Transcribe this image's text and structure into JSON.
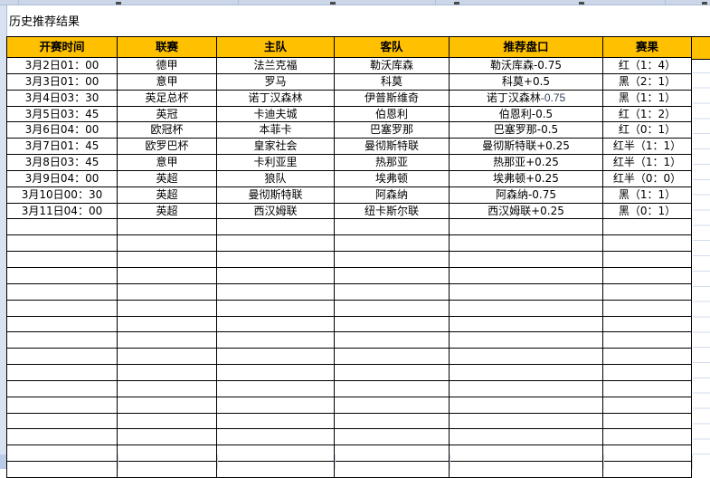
{
  "title": "历史推荐结果",
  "colors": {
    "header_bg": "#FFC000",
    "result_red": "#FF0000",
    "result_black": "#000000",
    "result_navy": "#1F3864",
    "gridline": "#D3DCEC"
  },
  "table": {
    "headers": [
      "开赛时间",
      "联赛",
      "主队",
      "客队",
      "推荐盘口",
      "赛果"
    ],
    "rows": [
      {
        "time": "3月2日01：00",
        "league": "德甲",
        "home": "法兰克福",
        "away": "勒沃库森",
        "handicap": "勒沃库森-0.75",
        "handicap_suffix": "",
        "result": "红（1：4）",
        "result_color": "red"
      },
      {
        "time": "3月3日01：00",
        "league": "意甲",
        "home": "罗马",
        "away": "科莫",
        "handicap": "科莫+0.5",
        "handicap_suffix": "",
        "result": "黑（2：1）",
        "result_color": "black"
      },
      {
        "time": "3月4日03：30",
        "league": "英足总杯",
        "home": "诺丁汉森林",
        "away": "伊普斯维奇",
        "handicap": "诺丁汉森林",
        "handicap_suffix": "-0.75",
        "result": "黑（1：1）",
        "result_color": "black"
      },
      {
        "time": "3月5日03：45",
        "league": "英冠",
        "home": "卡迪夫城",
        "away": "伯恩利",
        "handicap": "伯恩利-0.5",
        "handicap_suffix": "",
        "result": "红（1：2）",
        "result_color": "red"
      },
      {
        "time": "3月6日04：00",
        "league": "欧冠杯",
        "home": "本菲卡",
        "away": "巴塞罗那",
        "handicap": "巴塞罗那-0.5",
        "handicap_suffix": "",
        "result": "红（0：1）",
        "result_color": "red"
      },
      {
        "time": "3月7日01：45",
        "league": "欧罗巴杯",
        "home": "皇家社会",
        "away": "曼彻斯特联",
        "handicap": "曼彻斯特联+0.25",
        "handicap_suffix": "",
        "result": "红半（1：1）",
        "result_color": "red"
      },
      {
        "time": "3月8日03：45",
        "league": "意甲",
        "home": "卡利亚里",
        "away": "热那亚",
        "handicap": "热那亚+0.25",
        "handicap_suffix": "",
        "result": "红半（1：1）",
        "result_color": "red"
      },
      {
        "time": "3月9日04：00",
        "league": "英超",
        "home": "狼队",
        "away": "埃弗顿",
        "handicap": "埃弗顿+0.25",
        "handicap_suffix": "",
        "result": "红半（0：0）",
        "result_color": "red"
      },
      {
        "time": "3月10日00：30",
        "league": "英超",
        "home": "曼彻斯特联",
        "away": "阿森纳",
        "handicap": "阿森纳-0.75",
        "handicap_suffix": "",
        "result": "黑（1：1）",
        "result_color": "navy"
      },
      {
        "time": "3月11日04：00",
        "league": "英超",
        "home": "西汉姆联",
        "away": "纽卡斯尔联",
        "handicap": "西汉姆联+0.25",
        "handicap_suffix": "",
        "result": "黑（0：1）",
        "result_color": "black"
      }
    ],
    "empty_row_count": 16
  }
}
